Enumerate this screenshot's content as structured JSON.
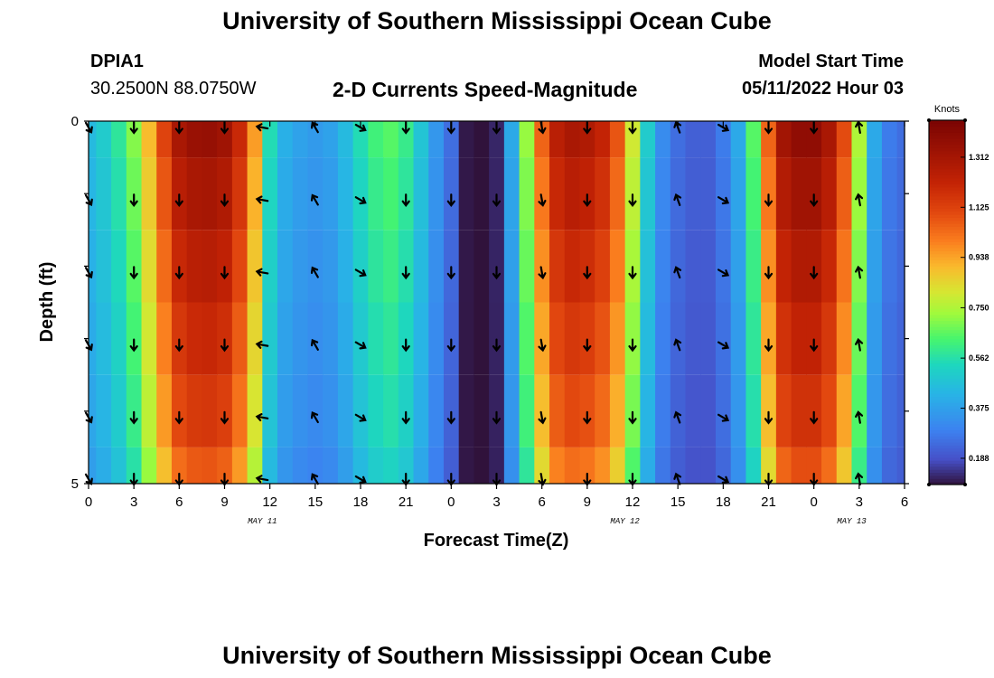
{
  "titles": {
    "main": "University of Southern Mississippi Ocean Cube",
    "bottom": "University of Southern Mississippi Ocean Cube"
  },
  "header": {
    "station": "DPIA1",
    "coords": "30.2500N  88.0750W",
    "product": "2-D Currents Speed-Magnitude",
    "model_label": "Model Start Time",
    "model_time": "05/11/2022 Hour 03"
  },
  "chart_data": {
    "type": "heatmap",
    "title": "2-D Currents Speed-Magnitude",
    "xlabel": "Forecast Time(Z)",
    "ylabel": "Depth (ft)",
    "x_ticks": [
      "0",
      "3",
      "6",
      "9",
      "12",
      "15",
      "18",
      "21",
      "0",
      "3",
      "6",
      "9",
      "12",
      "15",
      "18",
      "21",
      "0",
      "3",
      "6"
    ],
    "x_range_hours": [
      0,
      54
    ],
    "date_labels": [
      {
        "text": "MAY 11",
        "hour": 11.5
      },
      {
        "text": "MAY 12",
        "hour": 35.5
      },
      {
        "text": "MAY 13",
        "hour": 50.5
      }
    ],
    "y_ticks": [
      "0",
      "5"
    ],
    "y_range": [
      0,
      5
    ],
    "depth_layers": 5,
    "speed_time_hours": [
      0,
      1,
      2,
      3,
      4,
      5,
      6,
      7,
      8,
      9,
      10,
      11,
      12,
      13,
      14,
      15,
      16,
      17,
      18,
      19,
      20,
      21,
      22,
      23,
      24,
      25,
      26,
      27,
      28,
      29,
      30,
      31,
      32,
      33,
      34,
      35,
      36,
      37,
      38,
      39,
      40,
      41,
      42,
      43,
      44,
      45,
      46,
      47,
      48,
      49,
      50,
      51,
      52,
      53,
      54
    ],
    "speed_knots": [
      0.45,
      0.5,
      0.58,
      0.7,
      0.9,
      1.12,
      1.3,
      1.35,
      1.36,
      1.33,
      1.2,
      0.95,
      0.55,
      0.42,
      0.38,
      0.36,
      0.38,
      0.45,
      0.55,
      0.62,
      0.65,
      0.6,
      0.48,
      0.35,
      0.25,
      0.1,
      0.05,
      0.12,
      0.4,
      0.72,
      1.05,
      1.25,
      1.3,
      1.28,
      1.22,
      1.08,
      0.8,
      0.5,
      0.32,
      0.25,
      0.22,
      0.22,
      0.28,
      0.4,
      0.65,
      1.05,
      1.32,
      1.38,
      1.38,
      1.3,
      1.1,
      0.75,
      0.4,
      0.28,
      0.25
    ],
    "depth_factor": [
      1.0,
      0.96,
      0.92,
      0.88,
      0.84,
      0.78
    ],
    "vector_times": [
      0,
      3,
      6,
      9,
      11.5,
      15,
      18,
      21,
      24,
      27,
      30,
      33,
      36,
      39,
      42,
      45,
      48,
      51
    ],
    "vector_depth_rows": [
      0,
      1,
      2,
      3,
      4,
      5
    ],
    "vector_dirs_deg": [
      150,
      180,
      180,
      180,
      280,
      330,
      120,
      180,
      180,
      180,
      170,
      180,
      180,
      340,
      120,
      180,
      180,
      350
    ],
    "colorbar": {
      "unit": "Knots",
      "min": 0.09,
      "max": 1.45,
      "tick_values": [
        0.188,
        0.375,
        0.562,
        0.75,
        0.938,
        1.125,
        1.312
      ],
      "tick_labels": [
        "0.188",
        "0.375",
        "0.562",
        "0.750",
        "0.938",
        "1.125",
        "1.312"
      ]
    }
  }
}
